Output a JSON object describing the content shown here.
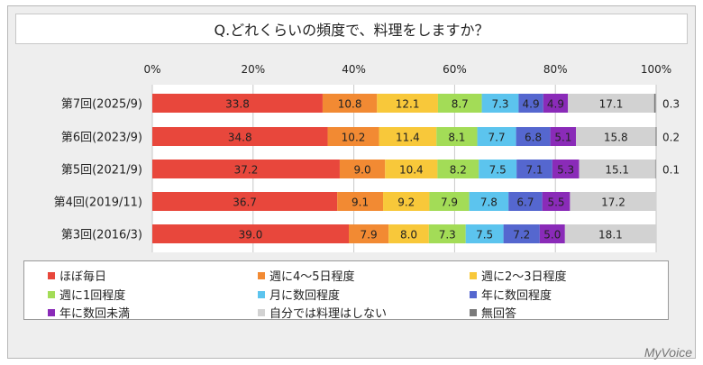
{
  "chart_data": {
    "type": "bar",
    "stacked": true,
    "orientation": "horizontal",
    "title": "Q.どれくらいの頻度で、料理をしますか？",
    "xlim": [
      0,
      100
    ],
    "x_ticks": [
      "0%",
      "20%",
      "40%",
      "60%",
      "80%",
      "100%"
    ],
    "grid": true,
    "legend_placement": "bottom",
    "categories": [
      "第7回(2025/9)",
      "第6回(2023/9)",
      "第5回(2021/9)",
      "第4回(2019/11)",
      "第3回(2016/3)"
    ],
    "series": [
      {
        "name": "ほぼ毎日",
        "color": "#e8473c",
        "values": [
          33.8,
          34.8,
          37.2,
          36.7,
          39.0
        ]
      },
      {
        "name": "週に4～5日程度",
        "color": "#f28a33",
        "values": [
          10.8,
          10.2,
          9.0,
          9.1,
          7.9
        ]
      },
      {
        "name": "週に2～3日程度",
        "color": "#f8c83a",
        "values": [
          12.1,
          11.4,
          10.4,
          9.2,
          8.0
        ]
      },
      {
        "name": "週に1回程度",
        "color": "#a3dc57",
        "values": [
          8.7,
          8.1,
          8.2,
          7.9,
          7.3
        ]
      },
      {
        "name": "月に数回程度",
        "color": "#5cc4ee",
        "values": [
          7.3,
          7.7,
          7.5,
          7.8,
          7.5
        ]
      },
      {
        "name": "年に数回程度",
        "color": "#5567cf",
        "values": [
          4.9,
          6.8,
          7.1,
          6.7,
          7.2
        ]
      },
      {
        "name": "年に数回未満",
        "color": "#8a2bb8",
        "values": [
          4.9,
          5.1,
          5.3,
          5.5,
          5.0
        ]
      },
      {
        "name": "自分では料理はしない",
        "color": "#d2d2d2",
        "values": [
          17.1,
          15.8,
          15.1,
          17.2,
          18.1
        ]
      },
      {
        "name": "無回答",
        "color": "#7a7a7a",
        "values": [
          0.3,
          0.2,
          0.1,
          null,
          null
        ]
      }
    ]
  },
  "brand": "MyVoice"
}
